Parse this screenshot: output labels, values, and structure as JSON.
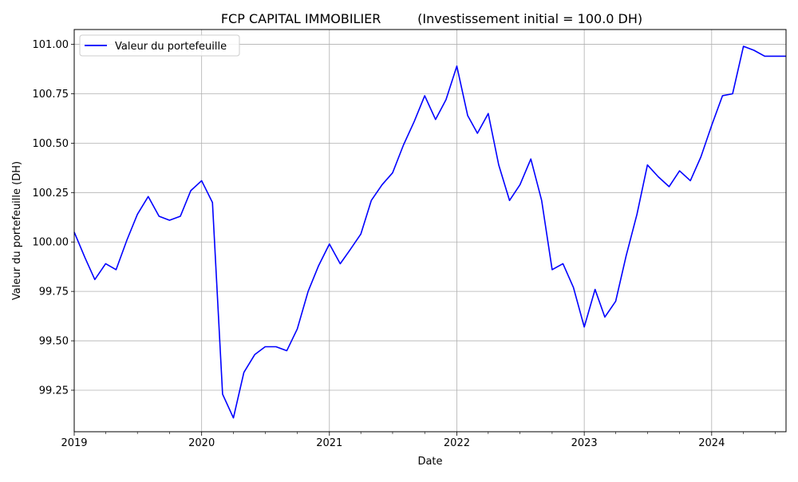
{
  "chart_data": {
    "type": "line",
    "title": "FCP CAPITAL IMMOBILIER         (Investissement initial = 100.0 DH)",
    "xlabel": "Date",
    "ylabel": "Valeur du portefeuille (DH)",
    "xlim": [
      "2019-01-01",
      "2024-08-01"
    ],
    "ylim": [
      99.04,
      101.075
    ],
    "grid": true,
    "legend_position": "upper-left",
    "x_ticks": [
      "2019",
      "2020",
      "2021",
      "2022",
      "2023",
      "2024"
    ],
    "y_ticks": [
      "99.25",
      "99.50",
      "99.75",
      "100.00",
      "100.25",
      "100.50",
      "100.75",
      "101.00"
    ],
    "x": [
      "2019-01-01",
      "2019-02-01",
      "2019-03-01",
      "2019-04-01",
      "2019-05-01",
      "2019-06-01",
      "2019-07-01",
      "2019-08-01",
      "2019-09-01",
      "2019-10-01",
      "2019-11-01",
      "2019-12-01",
      "2020-01-01",
      "2020-02-01",
      "2020-03-01",
      "2020-04-01",
      "2020-05-01",
      "2020-06-01",
      "2020-07-01",
      "2020-08-01",
      "2020-09-01",
      "2020-10-01",
      "2020-11-01",
      "2020-12-01",
      "2021-01-01",
      "2021-02-01",
      "2021-03-01",
      "2021-04-01",
      "2021-05-01",
      "2021-06-01",
      "2021-07-01",
      "2021-08-01",
      "2021-09-01",
      "2021-10-01",
      "2021-11-01",
      "2021-12-01",
      "2022-01-01",
      "2022-02-01",
      "2022-03-01",
      "2022-04-01",
      "2022-05-01",
      "2022-06-01",
      "2022-07-01",
      "2022-08-01",
      "2022-09-01",
      "2022-10-01",
      "2022-11-01",
      "2022-12-01",
      "2023-01-01",
      "2023-02-01",
      "2023-03-01",
      "2023-04-01",
      "2023-05-01",
      "2023-06-01",
      "2023-07-01",
      "2023-08-01",
      "2023-09-01",
      "2023-10-01",
      "2023-11-01",
      "2023-12-01",
      "2024-01-01",
      "2024-02-01",
      "2024-03-01",
      "2024-04-01",
      "2024-05-01",
      "2024-06-01",
      "2024-07-01",
      "2024-08-01"
    ],
    "series": [
      {
        "name": "Valeur du portefeuille",
        "color": "#0000ff",
        "values": [
          100.05,
          99.92,
          99.81,
          99.89,
          99.86,
          100.01,
          100.14,
          100.23,
          100.13,
          100.11,
          100.13,
          100.26,
          100.31,
          100.2,
          99.23,
          99.11,
          99.34,
          99.43,
          99.47,
          99.47,
          99.45,
          99.56,
          99.75,
          99.88,
          99.99,
          99.89,
          99.96,
          100.04,
          100.21,
          100.29,
          100.35,
          100.49,
          100.61,
          100.74,
          100.62,
          100.72,
          100.89,
          100.64,
          100.55,
          100.65,
          100.39,
          100.21,
          100.29,
          100.42,
          100.21,
          99.86,
          99.89,
          99.77,
          99.57,
          99.76,
          99.62,
          99.7,
          99.93,
          100.14,
          100.39,
          100.33,
          100.28,
          100.36,
          100.31,
          100.43,
          100.59,
          100.74,
          100.75,
          100.99,
          100.97,
          100.94,
          100.94,
          100.94
        ]
      }
    ]
  }
}
